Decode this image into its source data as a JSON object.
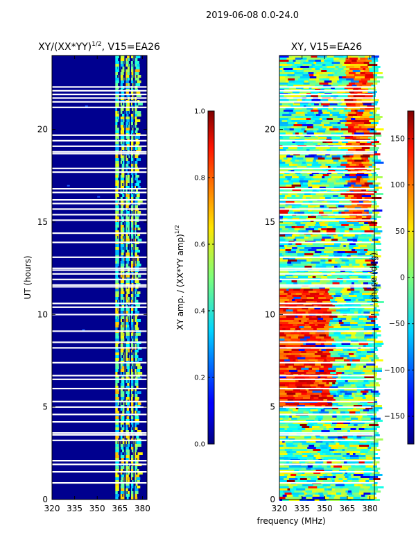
{
  "suptitle": "2019-06-08 0.0-24.0",
  "colors": {
    "background": "#ffffff",
    "axis": "#000000",
    "flag": "#ffffff"
  },
  "chart_data": [
    {
      "type": "heatmap",
      "title_main": "XY/(XX*YY)",
      "title_exp": "1/2",
      "title_rest": ", V15=EA26",
      "xlabel": "",
      "ylabel": "UT (hours)",
      "xlim": [
        320,
        383
      ],
      "ylim": [
        0,
        24
      ],
      "xticks": [
        "320",
        "335",
        "350",
        "365",
        "380"
      ],
      "xtick_values": [
        320,
        335,
        350,
        365,
        380
      ],
      "yticks": [
        "0",
        "5",
        "10",
        "15",
        "20"
      ],
      "ytick_values": [
        0,
        5,
        10,
        15,
        20
      ],
      "colorbar": {
        "label_main": "XY amp. / (XX*YY amp)",
        "label_exp": "1/2",
        "range": [
          0,
          1
        ],
        "ticks": [
          "0.0",
          "0.2",
          "0.4",
          "0.6",
          "0.8",
          "1.0"
        ],
        "tick_values": [
          0.0,
          0.2,
          0.4,
          0.6,
          0.8,
          1.0
        ]
      }
    },
    {
      "type": "heatmap",
      "title": "XY, V15=EA26",
      "xlabel": "frequency (MHz)",
      "ylabel": "",
      "xlim": [
        320,
        383
      ],
      "ylim": [
        0,
        24
      ],
      "xticks": [
        "320",
        "335",
        "350",
        "365",
        "380"
      ],
      "xtick_values": [
        320,
        335,
        350,
        365,
        380
      ],
      "yticks": [
        "0",
        "5",
        "10",
        "15",
        "20"
      ],
      "ytick_values": [
        0,
        5,
        10,
        15,
        20
      ],
      "colorbar": {
        "label": "phase (deg)",
        "range": [
          -180,
          180
        ],
        "ticks": [
          "150",
          "100",
          "50",
          "0",
          "−50",
          "−100",
          "−150"
        ],
        "tick_values": [
          150,
          100,
          50,
          0,
          -50,
          -100,
          -150
        ]
      }
    }
  ],
  "flagged_hours": [
    0.9,
    1.5,
    1.9,
    2.1,
    3.2,
    3.5,
    3.6,
    4.2,
    4.6,
    5.0,
    5.3,
    6.0,
    6.5,
    6.7,
    7.4,
    8.2,
    8.5,
    9.1,
    10.0,
    10.4,
    10.6,
    11.5,
    11.6,
    11.9,
    12.2,
    12.4,
    12.5,
    13.1,
    13.9,
    14.4,
    15.1,
    15.4,
    15.7,
    16.0,
    16.2,
    16.6,
    16.8,
    17.7,
    17.9,
    18.7,
    18.8,
    19.1,
    19.4,
    19.7,
    21.2,
    21.5,
    21.7,
    21.9,
    22.1,
    22.3
  ]
}
